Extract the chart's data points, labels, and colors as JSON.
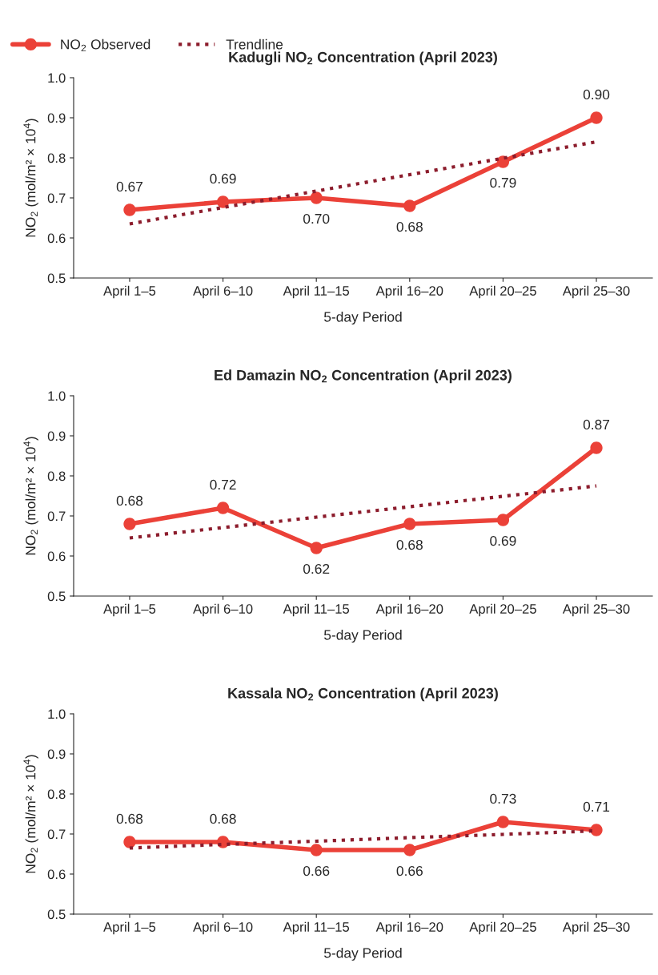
{
  "chart_data": [
    {
      "type": "line",
      "title": "Kadugli NO$_{2}$ Concentration (April 2023)",
      "xlabel": "5-day Period",
      "ylabel": "NO$_{2}$ (mol/m² × 10$^{4}$)",
      "categories": [
        "April 1–5",
        "April 6–10",
        "April 11–15",
        "April 16–20",
        "April 20–25",
        "April 25–30"
      ],
      "ylim": [
        0.5,
        1.0
      ],
      "yticks": [
        "0.5",
        "0.6",
        "0.7",
        "0.8",
        "0.9",
        "1.0"
      ],
      "grid": false,
      "legend": "top left",
      "series": [
        {
          "name": "NO$_{2}$ Observed",
          "color": "#eb4138",
          "marker": "circle",
          "line_style": "solid",
          "values": [
            0.67,
            0.69,
            0.7,
            0.68,
            0.79,
            0.9
          ],
          "value_labels": [
            "0.67",
            "0.69",
            "0.70",
            "0.68",
            "0.79",
            "0.90"
          ]
        },
        {
          "name": "Trendline",
          "color": "#8c1c2c",
          "marker": "none",
          "line_style": "dotted",
          "values": [
            0.635,
            0.676,
            0.717,
            0.758,
            0.799,
            0.84
          ]
        }
      ]
    },
    {
      "type": "line",
      "title": "Ed Damazin NO$_{2}$ Concentration (April 2023)",
      "xlabel": "5-day Period",
      "ylabel": "NO$_{2}$ (mol/m² × 10$^{4}$)",
      "categories": [
        "April 1–5",
        "April 6–10",
        "April 11–15",
        "April 16–20",
        "April 20–25",
        "April 25–30"
      ],
      "ylim": [
        0.5,
        1.0
      ],
      "yticks": [
        "0.5",
        "0.6",
        "0.7",
        "0.8",
        "0.9",
        "1.0"
      ],
      "grid": false,
      "series": [
        {
          "color": "#eb4138",
          "marker": "circle",
          "line_style": "solid",
          "values": [
            0.68,
            0.72,
            0.62,
            0.68,
            0.69,
            0.87
          ],
          "value_labels": [
            "0.68",
            "0.72",
            "0.62",
            "0.68",
            "0.69",
            "0.87"
          ]
        },
        {
          "color": "#8c1c2c",
          "marker": "none",
          "line_style": "dotted",
          "values": [
            0.645,
            0.671,
            0.697,
            0.723,
            0.749,
            0.775
          ]
        }
      ]
    },
    {
      "type": "line",
      "title": "Kassala NO$_{2}$ Concentration (April 2023)",
      "xlabel": "5-day Period",
      "ylabel": "NO$_{2}$ (mol/m² × 10$^{4}$)",
      "categories": [
        "April 1–5",
        "April 6–10",
        "April 11–15",
        "April 16–20",
        "April 20–25",
        "April 25–30"
      ],
      "ylim": [
        0.5,
        1.0
      ],
      "yticks": [
        "0.5",
        "0.6",
        "0.7",
        "0.8",
        "0.9",
        "1.0"
      ],
      "grid": false,
      "series": [
        {
          "color": "#eb4138",
          "marker": "circle",
          "line_style": "solid",
          "values": [
            0.68,
            0.68,
            0.66,
            0.66,
            0.73,
            0.71
          ],
          "value_labels": [
            "0.68",
            "0.68",
            "0.66",
            "0.66",
            "0.73",
            "0.71"
          ]
        },
        {
          "color": "#8c1c2c",
          "marker": "none",
          "line_style": "dotted",
          "values": [
            0.665,
            0.674,
            0.682,
            0.691,
            0.699,
            0.708
          ]
        }
      ]
    }
  ]
}
